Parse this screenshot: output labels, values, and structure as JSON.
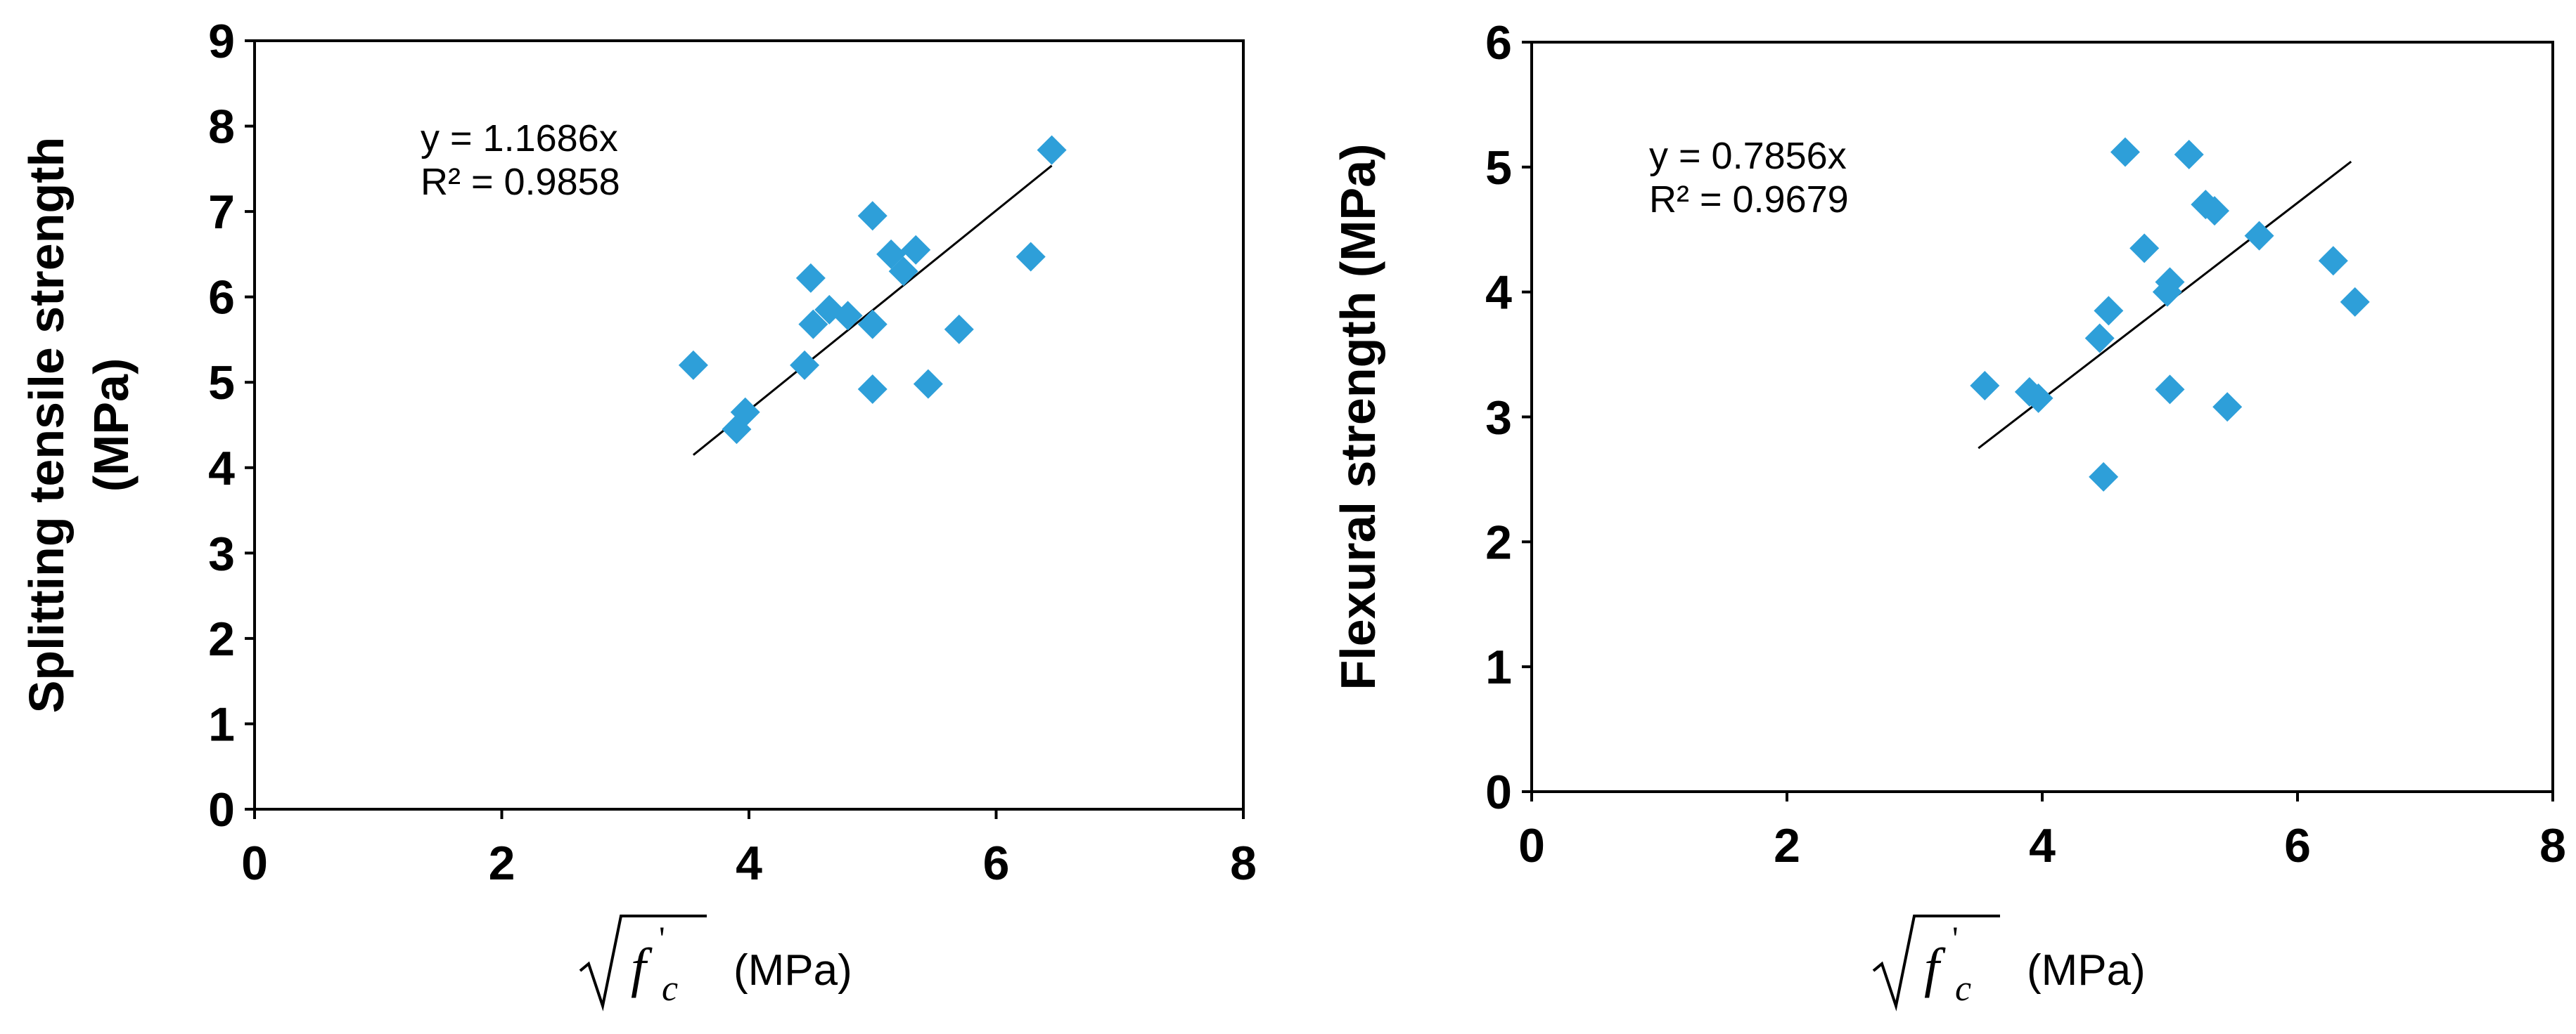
{
  "chart_data": [
    {
      "type": "scatter",
      "ylabel_lines": [
        "Splitting tensile strength",
        "(MPa)"
      ],
      "xlabel": "(MPa)",
      "xlabel_symbol": {
        "base": "f",
        "sub": "c",
        "prime": "'"
      },
      "xlim": [
        0,
        8
      ],
      "ylim": [
        0,
        9
      ],
      "xticks": [
        0,
        2,
        4,
        6,
        8
      ],
      "yticks": [
        0,
        1,
        2,
        3,
        4,
        5,
        6,
        7,
        8,
        9
      ],
      "marker": "diamond",
      "marker_color": "#2e9fd9",
      "trendline": {
        "slope": 1.1686,
        "x_range": [
          3.55,
          6.45
        ]
      },
      "annotations": [
        "y = 1.1686x",
        "R² = 0.9858"
      ],
      "points": [
        [
          3.55,
          5.2
        ],
        [
          3.9,
          4.45
        ],
        [
          3.97,
          4.65
        ],
        [
          4.45,
          5.2
        ],
        [
          4.5,
          6.22
        ],
        [
          4.52,
          5.68
        ],
        [
          4.65,
          5.85
        ],
        [
          4.8,
          5.78
        ],
        [
          5.0,
          6.95
        ],
        [
          5.0,
          5.68
        ],
        [
          5.0,
          4.92
        ],
        [
          5.15,
          6.5
        ],
        [
          5.25,
          6.3
        ],
        [
          5.35,
          6.55
        ],
        [
          5.45,
          4.98
        ],
        [
          5.7,
          5.62
        ],
        [
          6.28,
          6.47
        ],
        [
          6.45,
          7.72
        ]
      ]
    },
    {
      "type": "scatter",
      "ylabel_lines": [
        "Flexural strength (MPa)"
      ],
      "xlabel": "(MPa)",
      "xlabel_symbol": {
        "base": "f",
        "sub": "c",
        "prime": "'"
      },
      "xlim": [
        0,
        8
      ],
      "ylim": [
        0,
        6
      ],
      "xticks": [
        0,
        2,
        4,
        6,
        8
      ],
      "yticks": [
        0,
        1,
        2,
        3,
        4,
        5,
        6
      ],
      "marker": "diamond",
      "marker_color": "#2e9fd9",
      "trendline": {
        "slope": 0.7856,
        "x_range": [
          3.5,
          6.42
        ]
      },
      "annotations": [
        "y = 0.7856x",
        "R² = 0.9679"
      ],
      "points": [
        [
          3.55,
          3.25
        ],
        [
          3.9,
          3.2
        ],
        [
          3.97,
          3.15
        ],
        [
          4.45,
          3.63
        ],
        [
          4.48,
          2.52
        ],
        [
          4.52,
          3.85
        ],
        [
          4.65,
          5.12
        ],
        [
          4.8,
          4.35
        ],
        [
          4.98,
          4.0
        ],
        [
          5.0,
          4.08
        ],
        [
          5.0,
          3.22
        ],
        [
          5.15,
          5.1
        ],
        [
          5.28,
          4.7
        ],
        [
          5.35,
          4.65
        ],
        [
          5.45,
          3.08
        ],
        [
          5.7,
          4.45
        ],
        [
          6.28,
          4.25
        ],
        [
          6.45,
          3.92
        ]
      ]
    }
  ]
}
